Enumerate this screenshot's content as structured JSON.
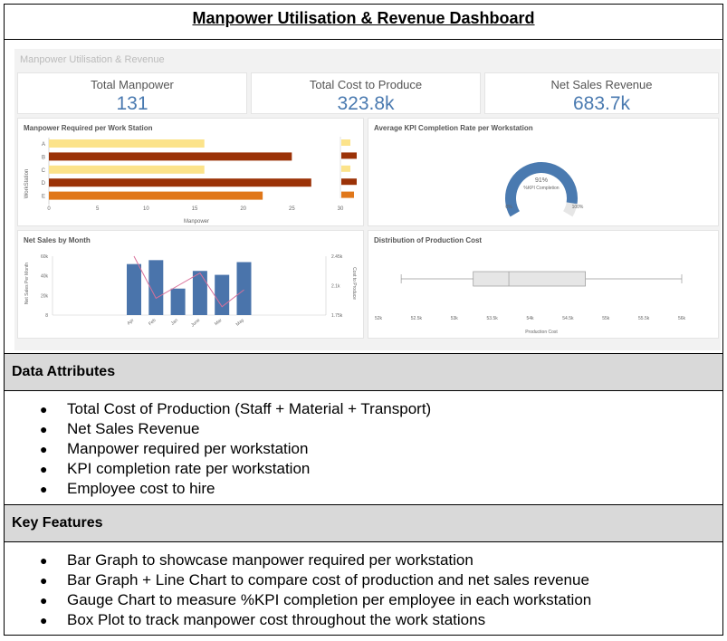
{
  "title": "Manpower Utilisation & Revenue Dashboard",
  "dashboard": {
    "title": "Manpower Utilisation & Revenue",
    "kpis": [
      {
        "label": "Total Manpower",
        "value": "131"
      },
      {
        "label": "Total Cost to Produce",
        "value": "323.8k"
      },
      {
        "label": "Net Sales Revenue",
        "value": "683.7k"
      }
    ],
    "manpower_chart": {
      "title": "Manpower Required per Work Station",
      "ylabel": "WorkStation",
      "xlabel": "Manpower",
      "categories": [
        "A",
        "B",
        "C",
        "D",
        "E"
      ],
      "values": [
        16,
        25,
        16,
        27,
        22
      ],
      "colors": [
        "#fce38a",
        "#9b3207",
        "#fce38a",
        "#9b3207",
        "#e0771a"
      ],
      "xticks": [
        "0",
        "5",
        "10",
        "15",
        "20",
        "25",
        "30"
      ],
      "xmax": 30
    },
    "gauge": {
      "title": "Average KPI Completion Rate per Workstation",
      "value_label": "91%",
      "sub_label": "%KPI Completion",
      "min_label": "0%",
      "max_label": "100%",
      "value": 0.91,
      "color": "#4a7ab0"
    },
    "sales_chart": {
      "title": "Net Sales by Month",
      "ylabel": "Net Sales Per Month",
      "y2label": "Cost to Produce",
      "categories": [
        "Apr",
        "Feb",
        "Jan",
        "June",
        "Mar",
        "May"
      ],
      "bars": [
        52000,
        56000,
        27000,
        45000,
        41000,
        54000
      ],
      "line": [
        2.45,
        1.95,
        2.1,
        2.25,
        1.85,
        2.05
      ],
      "yticks": [
        "60k",
        "40k",
        "20k",
        "8"
      ],
      "y2ticks": [
        "2.45k",
        "2.1k",
        "1.75k"
      ],
      "ylim": [
        0,
        60000
      ],
      "y2lim": [
        1.75,
        2.45
      ]
    },
    "boxplot": {
      "title": "Distribution of Production Cost",
      "xlabel": "Production Cost",
      "xticks": [
        "52k",
        "52.5k",
        "53k",
        "53.5k",
        "54k",
        "54.5k",
        "55k",
        "55.5k",
        "56k"
      ],
      "min": 52300,
      "q1": 53250,
      "median": 53720,
      "q3": 54730,
      "max": 56000,
      "xlim": [
        52000,
        56000
      ]
    }
  },
  "data_attributes": {
    "heading": "Data Attributes",
    "items": [
      "Total Cost of Production (Staff + Material + Transport)",
      "Net Sales Revenue",
      "Manpower required per workstation",
      "KPI completion rate per workstation",
      "Employee cost to hire"
    ]
  },
  "key_features": {
    "heading": "Key Features",
    "items": [
      "Bar Graph to showcase manpower required per workstation",
      "Bar Graph + Line Chart to compare cost of production and net sales revenue",
      "Gauge Chart to measure %KPI completion per employee in each workstation",
      "Box Plot to track manpower cost throughout the work stations"
    ]
  },
  "chart_data": [
    {
      "type": "bar",
      "title": "Manpower Required per Work Station",
      "categories": [
        "A",
        "B",
        "C",
        "D",
        "E"
      ],
      "values": [
        16,
        25,
        16,
        27,
        22
      ],
      "xlabel": "Manpower",
      "ylabel": "WorkStation",
      "xlim": [
        0,
        30
      ]
    },
    {
      "type": "bar",
      "title": "Net Sales by Month",
      "categories": [
        "Apr",
        "Feb",
        "Jan",
        "June",
        "Mar",
        "May"
      ],
      "series": [
        {
          "values": [
            52000,
            56000,
            27000,
            45000,
            41000,
            54000
          ]
        },
        {
          "values": [
            2.45,
            1.95,
            2.1,
            2.25,
            1.85,
            2.05
          ]
        }
      ],
      "ylabel": "Net Sales Per Month"
    }
  ]
}
